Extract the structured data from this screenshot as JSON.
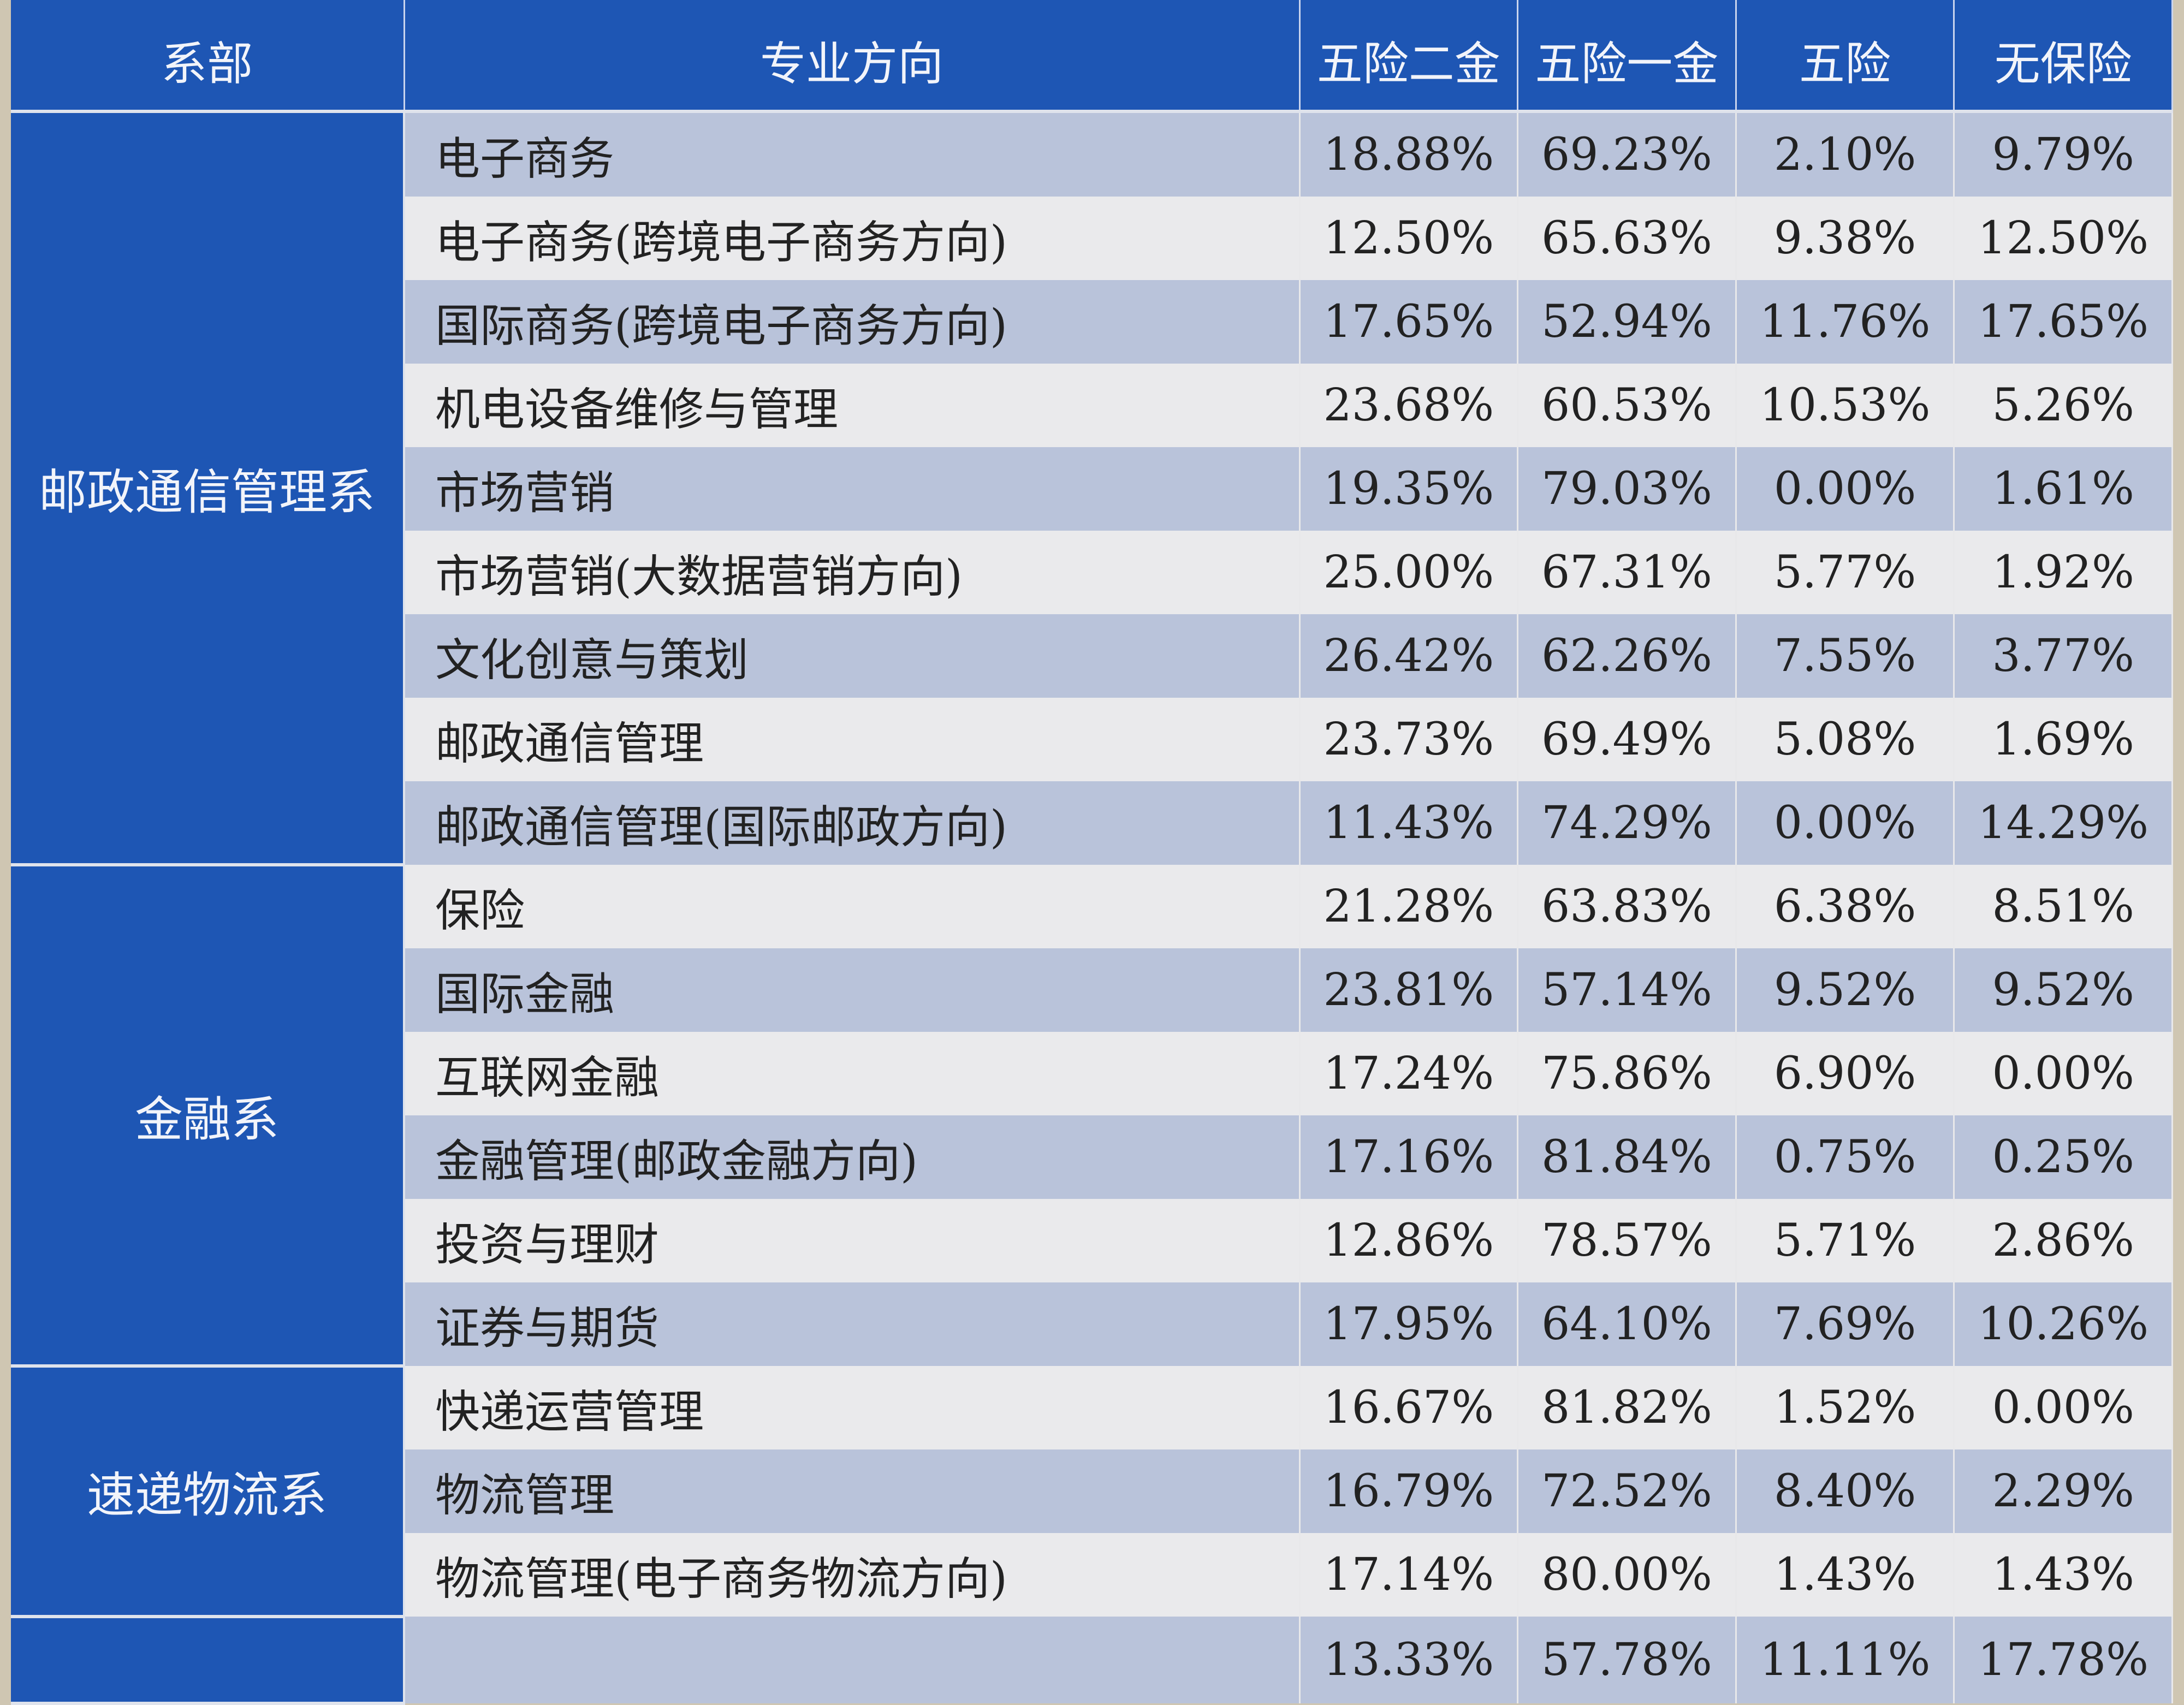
{
  "headers": [
    "系部",
    "专业方向",
    "五险二金",
    "五险一金",
    "五险",
    "无保险"
  ],
  "departments": [
    {
      "name": "邮政通信管理系",
      "rows": [
        {
          "major": "电子商务",
          "values": [
            "18.88%",
            "69.23%",
            "2.10%",
            "9.79%"
          ]
        },
        {
          "major": "电子商务(跨境电子商务方向)",
          "values": [
            "12.50%",
            "65.63%",
            "9.38%",
            "12.50%"
          ]
        },
        {
          "major": "国际商务(跨境电子商务方向)",
          "values": [
            "17.65%",
            "52.94%",
            "11.76%",
            "17.65%"
          ]
        },
        {
          "major": "机电设备维修与管理",
          "values": [
            "23.68%",
            "60.53%",
            "10.53%",
            "5.26%"
          ]
        },
        {
          "major": "市场营销",
          "values": [
            "19.35%",
            "79.03%",
            "0.00%",
            "1.61%"
          ]
        },
        {
          "major": "市场营销(大数据营销方向)",
          "values": [
            "25.00%",
            "67.31%",
            "5.77%",
            "1.92%"
          ]
        },
        {
          "major": "文化创意与策划",
          "values": [
            "26.42%",
            "62.26%",
            "7.55%",
            "3.77%"
          ]
        },
        {
          "major": "邮政通信管理",
          "values": [
            "23.73%",
            "69.49%",
            "5.08%",
            "1.69%"
          ]
        },
        {
          "major": "邮政通信管理(国际邮政方向)",
          "values": [
            "11.43%",
            "74.29%",
            "0.00%",
            "14.29%"
          ]
        }
      ]
    },
    {
      "name": "金融系",
      "rows": [
        {
          "major": "保险",
          "values": [
            "21.28%",
            "63.83%",
            "6.38%",
            "8.51%"
          ]
        },
        {
          "major": "国际金融",
          "values": [
            "23.81%",
            "57.14%",
            "9.52%",
            "9.52%"
          ]
        },
        {
          "major": "互联网金融",
          "values": [
            "17.24%",
            "75.86%",
            "6.90%",
            "0.00%"
          ]
        },
        {
          "major": "金融管理(邮政金融方向)",
          "values": [
            "17.16%",
            "81.84%",
            "0.75%",
            "0.25%"
          ]
        },
        {
          "major": "投资与理财",
          "values": [
            "12.86%",
            "78.57%",
            "5.71%",
            "2.86%"
          ]
        },
        {
          "major": "证券与期货",
          "values": [
            "17.95%",
            "64.10%",
            "7.69%",
            "10.26%"
          ]
        }
      ]
    },
    {
      "name": "速递物流系",
      "rows": [
        {
          "major": "快递运营管理",
          "values": [
            "16.67%",
            "81.82%",
            "1.52%",
            "0.00%"
          ]
        },
        {
          "major": "物流管理",
          "values": [
            "16.79%",
            "72.52%",
            "8.40%",
            "2.29%"
          ]
        },
        {
          "major": "物流管理(电子商务物流方向)",
          "values": [
            "17.14%",
            "80.00%",
            "1.43%",
            "1.43%"
          ]
        }
      ]
    },
    {
      "name": "",
      "rows": [
        {
          "major": "",
          "values": [
            "13.33%",
            "57.78%",
            "11.11%",
            "17.78%"
          ]
        }
      ]
    }
  ]
}
